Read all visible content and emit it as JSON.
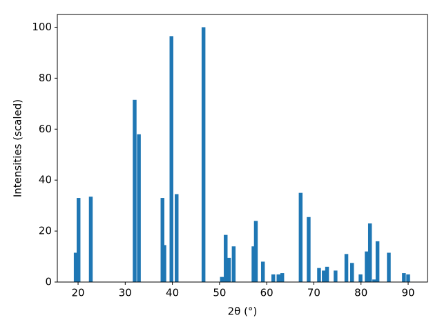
{
  "chart_data": {
    "type": "bar",
    "x": [
      19.5,
      20.1,
      22.7,
      32.0,
      32.9,
      37.9,
      38.3,
      39.8,
      40.9,
      46.6,
      50.5,
      51.3,
      52.0,
      53.0,
      57.2,
      57.7,
      59.2,
      61.4,
      62.5,
      63.3,
      67.2,
      68.9,
      71.1,
      72.1,
      72.8,
      74.6,
      76.9,
      78.1,
      79.9,
      81.2,
      81.9,
      82.8,
      83.5,
      85.9,
      89.1,
      90.0
    ],
    "values": [
      11.5,
      33,
      33.5,
      71.5,
      58,
      33,
      14.5,
      96.5,
      34.5,
      100,
      2,
      18.5,
      9.5,
      14,
      14,
      24,
      8,
      3,
      3,
      3.5,
      35,
      25.5,
      5.5,
      4.5,
      6,
      4.5,
      11,
      7.5,
      3,
      12,
      23,
      1,
      16,
      11.5,
      3.5,
      3
    ],
    "color": "#1f77b4",
    "xlabel": "2θ (°)",
    "ylabel": "Intensities (scaled)",
    "xlim": [
      15.6,
      94.1
    ],
    "xticks": [
      20,
      30,
      40,
      50,
      60,
      70,
      80,
      90
    ],
    "ylim": [
      0,
      105
    ],
    "yticks": [
      0,
      20,
      40,
      60,
      80,
      100
    ]
  }
}
